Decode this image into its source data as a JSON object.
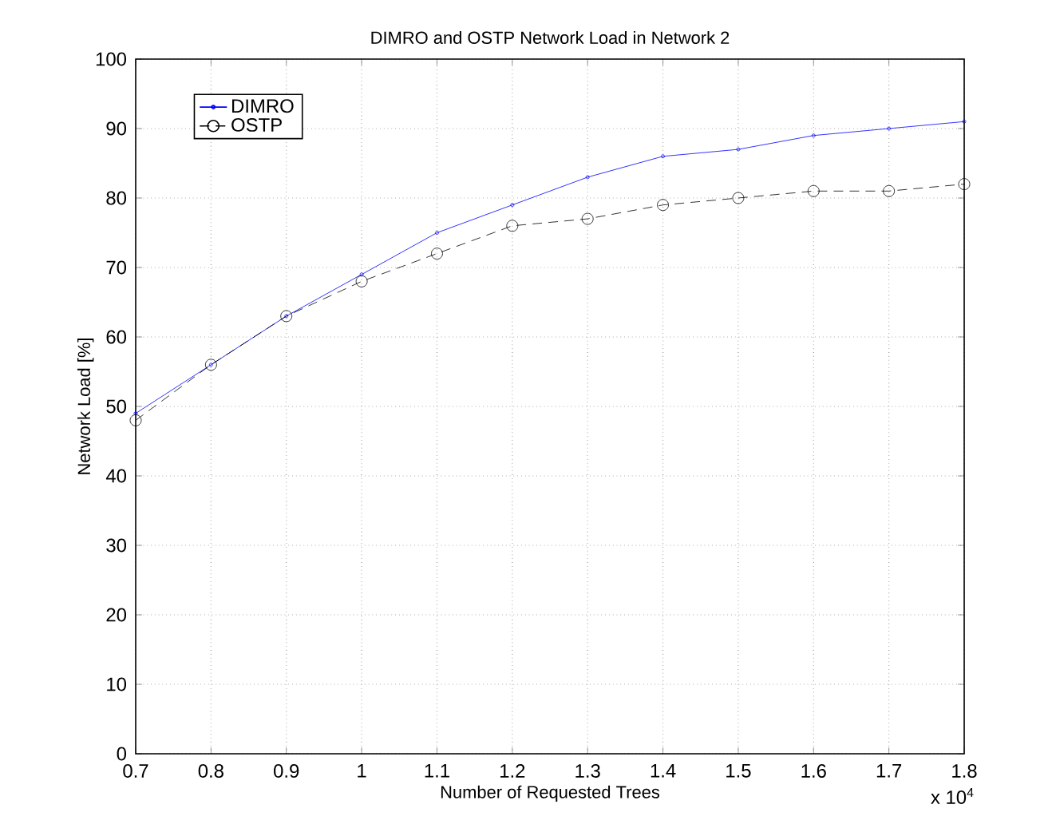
{
  "chart_data": {
    "type": "line",
    "title": "DIMRO and OSTP Network Load in Network 2",
    "xlabel": "Number of Requested Trees",
    "ylabel": "Network Load [%]",
    "annotations": [
      "x 10$^{4}$"
    ],
    "x": [
      0.7,
      0.8,
      0.9,
      1,
      1.1,
      1.2,
      1.3,
      1.4,
      1.5,
      1.6,
      1.7,
      1.8
    ],
    "series": [
      {
        "name": "DIMRO",
        "color": "#0000ff",
        "marker": "circle",
        "line_style": "solid",
        "values": [
          49,
          56,
          63,
          69,
          75,
          79,
          83,
          86,
          87,
          89,
          90,
          91
        ]
      },
      {
        "name": "OSTP",
        "color": "#000000",
        "marker": "circle",
        "line_style": "dashed",
        "values": [
          48,
          56,
          63,
          68,
          72,
          76,
          77,
          79,
          80,
          81,
          81,
          82
        ]
      }
    ],
    "xlim": [
      0.7,
      1.8
    ],
    "xticks": [
      0.7,
      0.8,
      0.9,
      1,
      1.1,
      1.2,
      1.3,
      1.4,
      1.5,
      1.6,
      1.7,
      1.8
    ],
    "ylim": [
      0,
      100
    ],
    "yticks": [
      0,
      10,
      20,
      30,
      40,
      50,
      60,
      70,
      80,
      90,
      100
    ],
    "grid": true,
    "legend": "top left"
  }
}
